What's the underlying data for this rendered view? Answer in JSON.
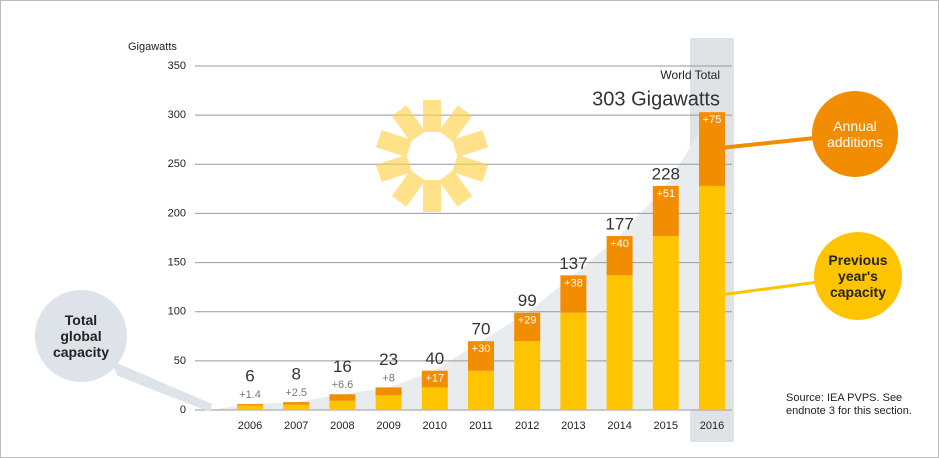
{
  "chart_data": {
    "type": "stacked_bar",
    "y_label": "Gigawatts",
    "categories": [
      "2006",
      "2007",
      "2008",
      "2009",
      "2010",
      "2011",
      "2012",
      "2013",
      "2014",
      "2015",
      "2016"
    ],
    "series": [
      {
        "name": "Previous year's capacity",
        "color": "#ffc400",
        "values": [
          4.6,
          5.5,
          9.4,
          15,
          23,
          40,
          70,
          99,
          137,
          177,
          228
        ]
      },
      {
        "name": "Annual additions",
        "color": "#f28c00",
        "values": [
          1.4,
          2.5,
          6.6,
          8,
          17,
          30,
          29,
          38,
          40,
          51,
          75
        ],
        "value_labels": [
          "+1.4",
          "+2.5",
          "+6.6",
          "+8",
          "+17",
          "+30",
          "+29",
          "+38",
          "+40",
          "+51",
          "+75"
        ]
      }
    ],
    "totals": {
      "name": "Total global capacity",
      "values": [
        6,
        8,
        16,
        23,
        40,
        70,
        99,
        137,
        177,
        228,
        303
      ],
      "value_labels": [
        "6",
        "8",
        "16",
        "23",
        "40",
        "70",
        "99",
        "137",
        "177",
        "228",
        "303 Gigawatts"
      ]
    },
    "annotations": {
      "world_total": "World Total",
      "source": "Source: IEA PVPS. See endnote 3 for this section."
    },
    "ylim": [
      0,
      350
    ],
    "yticks": [
      0,
      50,
      100,
      150,
      200,
      250,
      300,
      350
    ],
    "grid": true
  }
}
